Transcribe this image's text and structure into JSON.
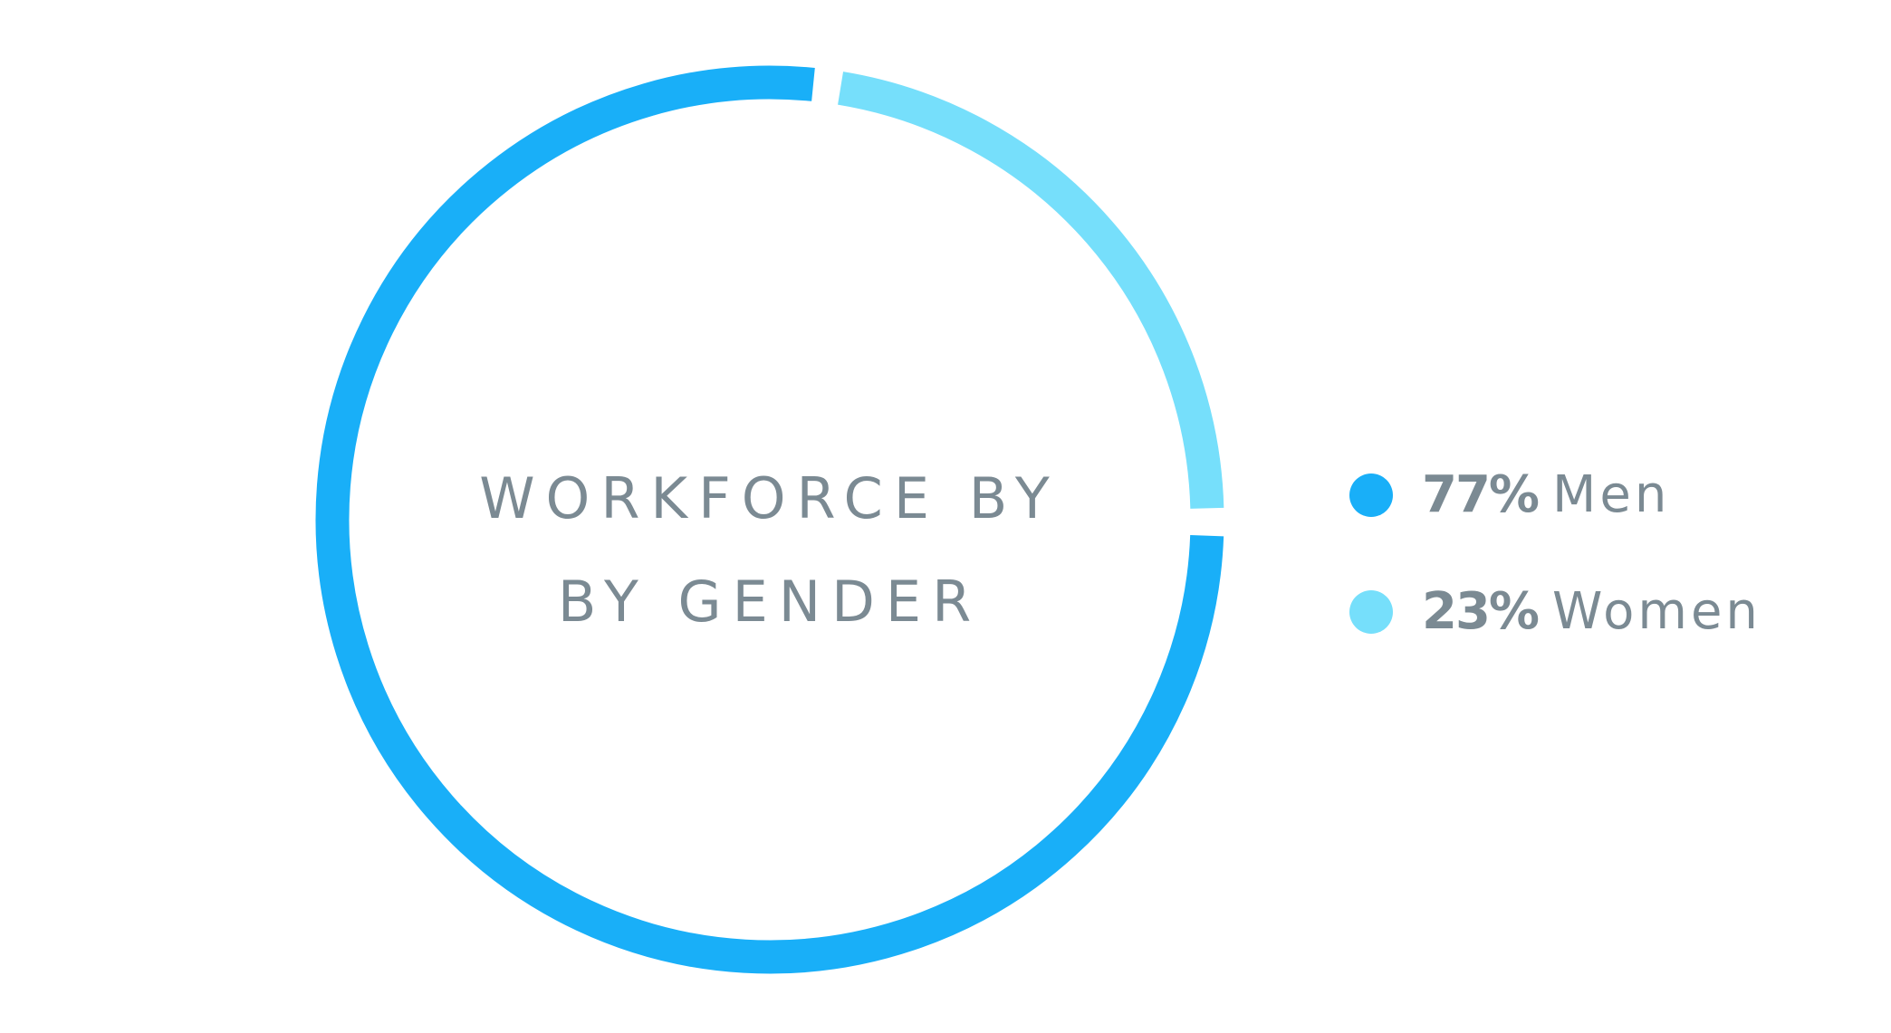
{
  "chart_data": {
    "type": "pie",
    "variant": "donut",
    "title_lines": [
      "WORKFORCE BY",
      "BY GENDER"
    ],
    "series": [
      {
        "name": "Men",
        "value": 77,
        "label": "77%",
        "color": "#19aff8"
      },
      {
        "name": "Women",
        "value": 23,
        "label": "23%",
        "color": "#76dffb"
      }
    ],
    "legend": "right"
  }
}
